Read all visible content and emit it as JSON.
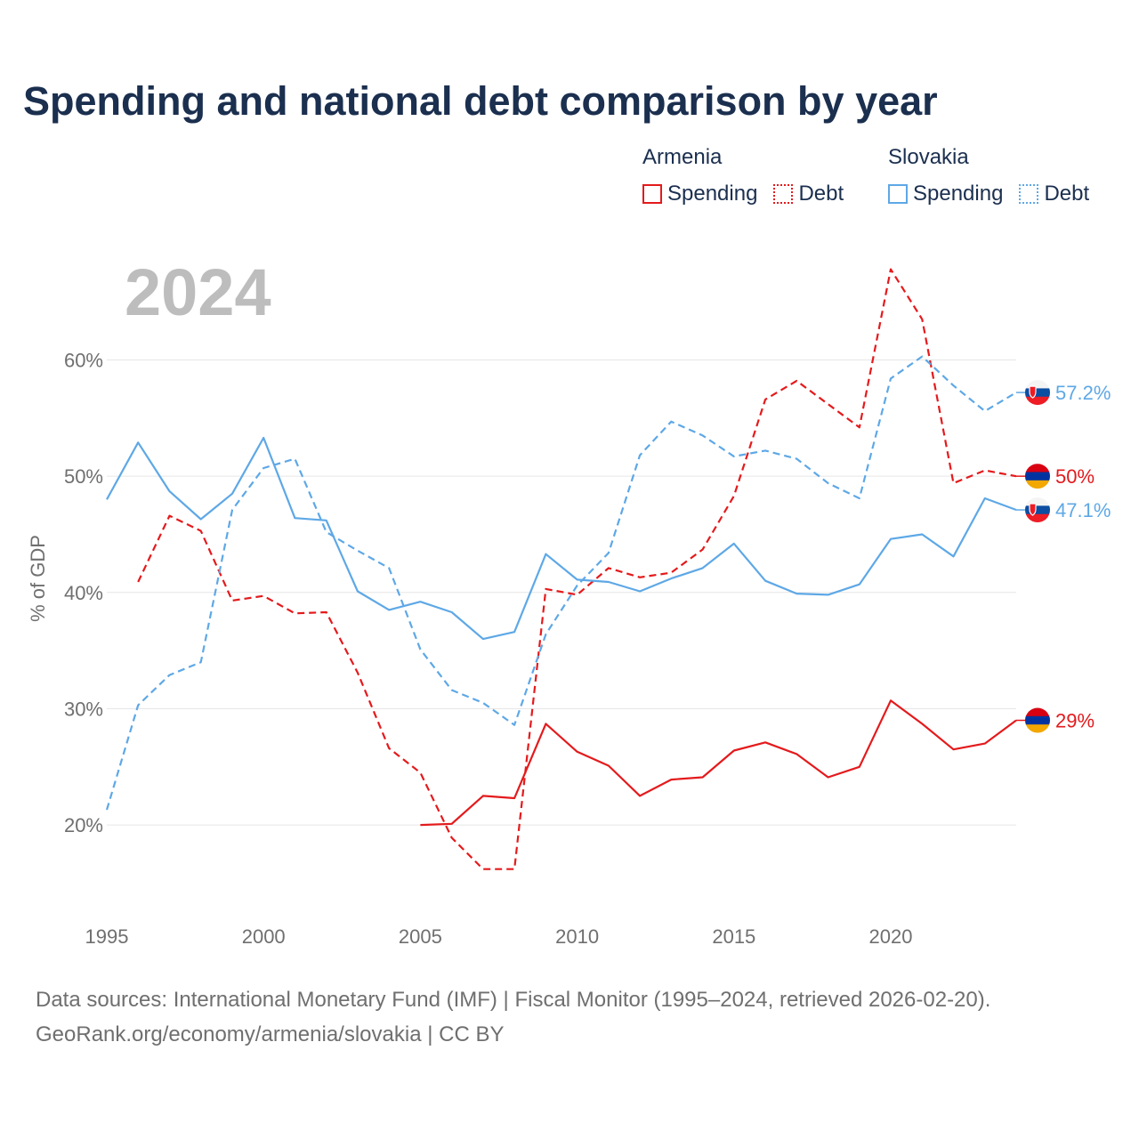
{
  "title": "Spending and national debt comparison by year",
  "year_label": "2024",
  "legend": {
    "groups": [
      {
        "name": "Armenia",
        "color": "#e41a1c",
        "items": [
          {
            "label": "Spending",
            "style": "solid"
          },
          {
            "label": "Debt",
            "style": "dotted"
          }
        ]
      },
      {
        "name": "Slovakia",
        "color": "#5ea8e6",
        "items": [
          {
            "label": "Spending",
            "style": "solid"
          },
          {
            "label": "Debt",
            "style": "dotted"
          }
        ]
      }
    ]
  },
  "footer": {
    "line1": "Data sources: International Monetary Fund (IMF) | Fiscal Monitor (1995–2024, retrieved 2026-02-20).",
    "line2": "GeoRank.org/economy/armenia/slovakia | CC BY"
  },
  "chart_data": {
    "type": "line",
    "ylabel": "% of GDP",
    "xlabel": "",
    "xlim": [
      1995,
      2024
    ],
    "ylim": [
      13.5,
      68
    ],
    "x_ticks": [
      1995,
      2000,
      2005,
      2010,
      2015,
      2020
    ],
    "y_ticks": [
      20,
      30,
      40,
      50,
      60
    ],
    "y_tick_labels": [
      "20%",
      "30%",
      "40%",
      "50%",
      "60%"
    ],
    "grid": true,
    "series": [
      {
        "name": "Armenia Debt",
        "country": "Armenia",
        "color": "#e41a1c",
        "dash": true,
        "end_label": "50%",
        "flag": "armenia",
        "x": [
          1996,
          1997,
          1998,
          1999,
          2000,
          2001,
          2002,
          2003,
          2004,
          2005,
          2006,
          2007,
          2008,
          2009,
          2010,
          2011,
          2012,
          2013,
          2014,
          2015,
          2016,
          2017,
          2018,
          2019,
          2020,
          2021,
          2022,
          2023,
          2024
        ],
        "values": [
          40.9,
          46.6,
          45.3,
          39.3,
          39.7,
          38.2,
          38.3,
          33.1,
          26.6,
          24.5,
          18.9,
          16.2,
          16.2,
          40.3,
          39.8,
          42.1,
          41.3,
          41.7,
          43.7,
          48.3,
          56.6,
          58.2,
          56.2,
          54.2,
          67.8,
          63.5,
          49.4,
          50.5,
          50.0
        ]
      },
      {
        "name": "Armenia Spending",
        "country": "Armenia",
        "color": "#e41a1c",
        "dash": false,
        "end_label": "29%",
        "flag": "armenia",
        "x": [
          2005,
          2006,
          2007,
          2008,
          2009,
          2010,
          2011,
          2012,
          2013,
          2014,
          2015,
          2016,
          2017,
          2018,
          2019,
          2020,
          2021,
          2022,
          2023,
          2024
        ],
        "values": [
          20.0,
          20.1,
          22.5,
          22.3,
          28.7,
          26.3,
          25.1,
          22.5,
          23.9,
          24.1,
          26.4,
          27.1,
          26.1,
          24.1,
          25.0,
          30.7,
          28.7,
          26.5,
          27.0,
          29.0
        ]
      },
      {
        "name": "Slovakia Debt",
        "country": "Slovakia",
        "color": "#5ea8e6",
        "dash": true,
        "end_label": "57.2%",
        "flag": "slovakia",
        "x": [
          1995,
          1996,
          1997,
          1998,
          1999,
          2000,
          2001,
          2002,
          2003,
          2004,
          2005,
          2006,
          2007,
          2008,
          2009,
          2010,
          2011,
          2012,
          2013,
          2014,
          2015,
          2016,
          2017,
          2018,
          2019,
          2020,
          2021,
          2022,
          2023,
          2024
        ],
        "values": [
          21.3,
          30.3,
          32.9,
          34.0,
          47.1,
          50.7,
          51.5,
          45.2,
          43.6,
          42.1,
          35.1,
          31.6,
          30.5,
          28.6,
          36.4,
          40.6,
          43.4,
          51.8,
          54.7,
          53.5,
          51.7,
          52.2,
          51.5,
          49.4,
          48.1,
          58.4,
          60.3,
          57.8,
          55.6,
          57.2
        ]
      },
      {
        "name": "Slovakia Spending",
        "country": "Slovakia",
        "color": "#5ea8e6",
        "dash": false,
        "end_label": "47.1%",
        "flag": "slovakia",
        "x": [
          1995,
          1996,
          1997,
          1998,
          1999,
          2000,
          2001,
          2002,
          2003,
          2004,
          2005,
          2006,
          2007,
          2008,
          2009,
          2010,
          2011,
          2012,
          2013,
          2014,
          2015,
          2016,
          2017,
          2018,
          2019,
          2020,
          2021,
          2022,
          2023,
          2024
        ],
        "values": [
          48.0,
          52.9,
          48.7,
          46.3,
          48.5,
          53.3,
          46.4,
          46.2,
          40.1,
          38.5,
          39.2,
          38.3,
          36.0,
          36.6,
          43.3,
          41.1,
          40.9,
          40.1,
          41.2,
          42.1,
          44.2,
          41.0,
          39.9,
          39.8,
          40.7,
          44.6,
          45.0,
          43.1,
          48.1,
          47.1
        ]
      }
    ]
  }
}
